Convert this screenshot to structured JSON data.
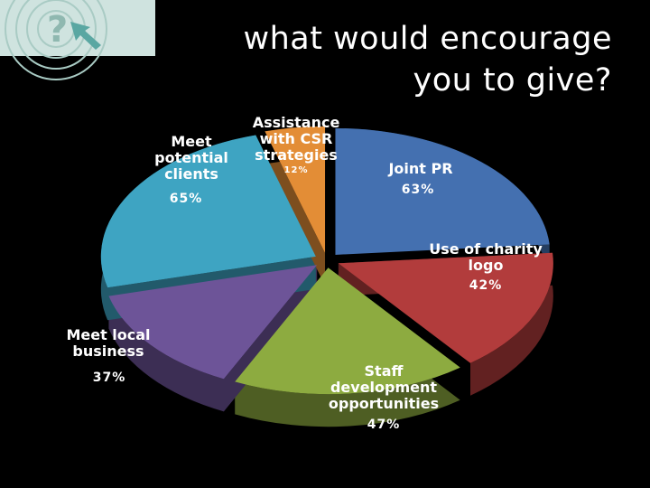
{
  "chart_data": {
    "type": "pie",
    "title": "what would encourage you to give?",
    "categories": [
      "Joint PR",
      "Use of charity logo",
      "Staff development opportunities",
      "Meet local business",
      "Meet potential clients",
      "Assistance with CSR strategies"
    ],
    "values": [
      63,
      42,
      47,
      37,
      65,
      12
    ],
    "value_labels": [
      "63%",
      "42%",
      "47%",
      "37%",
      "65%",
      "12%"
    ],
    "colors": [
      "#4470b0",
      "#b23c3c",
      "#8dab40",
      "#6d5498",
      "#3ea4c2",
      "#e38d36"
    ]
  }
}
